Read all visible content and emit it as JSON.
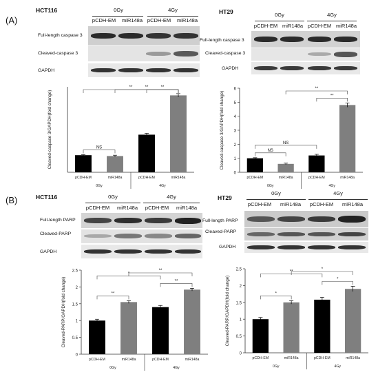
{
  "panels": {
    "A": {
      "label": "(A)",
      "blots": [
        {
          "cell": "HCT116",
          "doses": [
            "0Gy",
            "4Gy"
          ],
          "lanes": [
            "pCDH-EM",
            "miR148a",
            "pCDH-EM",
            "miR148a"
          ],
          "rows": [
            "Full-length caspase 3",
            "Cleaved-caspase  3",
            "GAPDH"
          ]
        },
        {
          "cell": "HT29",
          "doses": [
            "0Gy",
            "4Gy"
          ],
          "lanes": [
            "pCDH-EM",
            "miR148a",
            "pCDH-EM",
            "miR148a"
          ],
          "rows": [
            "Full-length caspase 3",
            "Cleaved-caspase  3",
            "GAPDH"
          ]
        }
      ]
    },
    "B": {
      "label": "(B)",
      "blots": [
        {
          "cell": "HCT116",
          "doses": [
            "0Gy",
            "4Gy"
          ],
          "lanes": [
            "pCDH-EM",
            "miR148a",
            "pCDH-EM",
            "miR148a"
          ],
          "rows": [
            "Full-length PARP",
            "Cleaved-PARP",
            "GAPDH"
          ]
        },
        {
          "cell": "HT29",
          "doses": [
            "0Gy",
            "4Gy"
          ],
          "lanes": [
            "pCDH-EM",
            "miR148a",
            "pCDH-EM",
            "miR148a"
          ],
          "rows": [
            "Full-length PARP",
            "Cleaved-PARP",
            "GAPDH"
          ]
        }
      ]
    }
  },
  "chart_data": [
    {
      "type": "bar",
      "panel": "A",
      "ylabel": "Cleaved-caspase 3/GAPDH(fold change)",
      "categories": [
        "pCDH-EM",
        "miR148a",
        "pCDH-EM",
        "miR148a"
      ],
      "groups": [
        "0Gy",
        "4Gy"
      ],
      "values": [
        1.0,
        0.95,
        2.2,
        4.5
      ],
      "errors": [
        0.03,
        0.05,
        0.08,
        0.1
      ],
      "bar_colors": [
        "#000000",
        "#7f7f7f",
        "#000000",
        "#7f7f7f"
      ],
      "ylim": [
        0,
        5
      ],
      "yticks": [],
      "significance": [
        {
          "from": 0,
          "to": 1,
          "label": "NS"
        },
        {
          "from": 2,
          "to": 3,
          "label": "**"
        },
        {
          "from": 0,
          "to": 3,
          "label": "**"
        },
        {
          "from": 1,
          "to": 3,
          "label": "**"
        }
      ]
    },
    {
      "type": "bar",
      "panel": "A",
      "ylabel": "Cleaved-caspase 3/GAPDH(fold change)",
      "categories": [
        "pCDH-EM",
        "miR148a",
        "pCDH-EM",
        "miR148a"
      ],
      "groups": [
        "0Gy",
        "4Gy"
      ],
      "values": [
        1.0,
        0.6,
        1.2,
        4.8
      ],
      "errors": [
        0.04,
        0.05,
        0.08,
        0.15
      ],
      "bar_colors": [
        "#000000",
        "#7f7f7f",
        "#000000",
        "#7f7f7f"
      ],
      "ylim": [
        0,
        6
      ],
      "yticks": [
        "0",
        "1",
        "2",
        "3",
        "4",
        "5",
        "6"
      ],
      "significance": [
        {
          "from": 0,
          "to": 1,
          "label": "NS"
        },
        {
          "from": 0,
          "to": 2,
          "label": "NS"
        },
        {
          "from": 2,
          "to": 3,
          "label": "**"
        },
        {
          "from": 1,
          "to": 3,
          "label": "**"
        }
      ]
    },
    {
      "type": "bar",
      "panel": "B",
      "ylabel": "Cleaved-PARP/GAPDH(fold change)",
      "categories": [
        "pCDH-EM",
        "miR148a",
        "pCDH-EM",
        "miR148a"
      ],
      "groups": [
        "0Gy",
        "4Gy"
      ],
      "values": [
        1.0,
        1.55,
        1.4,
        1.92
      ],
      "errors": [
        0.04,
        0.04,
        0.05,
        0.04
      ],
      "bar_colors": [
        "#000000",
        "#7f7f7f",
        "#000000",
        "#7f7f7f"
      ],
      "ylim": [
        0,
        2.5
      ],
      "yticks": [
        "0",
        "0.5",
        "1",
        "1.5",
        "2",
        "2.5"
      ],
      "significance": [
        {
          "from": 0,
          "to": 1,
          "label": "**"
        },
        {
          "from": 2,
          "to": 3,
          "label": "**"
        },
        {
          "from": 0,
          "to": 2,
          "label": "*"
        },
        {
          "from": 1,
          "to": 3,
          "label": "**"
        }
      ]
    },
    {
      "type": "bar",
      "panel": "B",
      "ylabel": "Cleaved-PARP/GAPDH(fold change)",
      "categories": [
        "pCDH-EM",
        "miR148a",
        "pCDH-EM",
        "miR148a"
      ],
      "groups": [
        "0Gy",
        "4Gy"
      ],
      "values": [
        1.0,
        1.5,
        1.58,
        1.9
      ],
      "errors": [
        0.05,
        0.05,
        0.07,
        0.08
      ],
      "bar_colors": [
        "#000000",
        "#7f7f7f",
        "#000000",
        "#7f7f7f"
      ],
      "ylim": [
        0,
        2.5
      ],
      "yticks": [
        "0",
        "0.5",
        "1",
        "1.5",
        "2",
        "2.5"
      ],
      "significance": [
        {
          "from": 0,
          "to": 1,
          "label": "*"
        },
        {
          "from": 2,
          "to": 3,
          "label": "*"
        },
        {
          "from": 0,
          "to": 2,
          "label": "**"
        },
        {
          "from": 1,
          "to": 3,
          "label": "*"
        }
      ]
    }
  ]
}
